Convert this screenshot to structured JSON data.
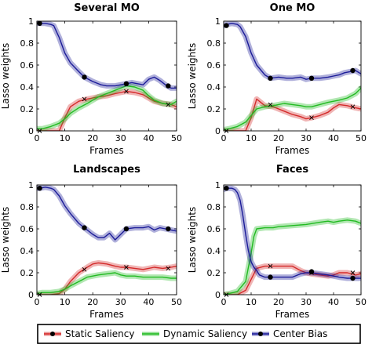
{
  "legend": [
    {
      "name": "Static Saliency",
      "color": "#d42a2a"
    },
    {
      "name": "Dynamic Saliency",
      "color": "#22bb22"
    },
    {
      "name": "Center Bias",
      "color": "#1c1c99"
    }
  ],
  "chart_data": [
    {
      "type": "line",
      "title": "Several MO",
      "xlabel": "Frames",
      "ylabel": "Lasso weights",
      "xlim": [
        0,
        50
      ],
      "ylim": [
        0,
        1
      ],
      "xticks": [
        0,
        10,
        20,
        30,
        40,
        50
      ],
      "yticks": [
        0,
        0.2,
        0.4,
        0.6,
        0.8,
        1
      ],
      "series": [
        {
          "name": "Static Saliency",
          "x": [
            0,
            2,
            5,
            8,
            10,
            12,
            15,
            18,
            20,
            22,
            25,
            28,
            30,
            32,
            35,
            38,
            40,
            42,
            45,
            48,
            50
          ],
          "y": [
            0,
            0,
            0,
            0,
            0.12,
            0.22,
            0.27,
            0.29,
            0.3,
            0.31,
            0.32,
            0.34,
            0.35,
            0.36,
            0.35,
            0.33,
            0.3,
            0.27,
            0.25,
            0.24,
            0.22
          ]
        },
        {
          "name": "Dynamic Saliency",
          "x": [
            0,
            2,
            5,
            8,
            10,
            12,
            15,
            18,
            20,
            22,
            25,
            28,
            30,
            32,
            35,
            38,
            40,
            42,
            45,
            48,
            50
          ],
          "y": [
            0.02,
            0.02,
            0.04,
            0.07,
            0.11,
            0.16,
            0.21,
            0.25,
            0.28,
            0.31,
            0.34,
            0.37,
            0.39,
            0.41,
            0.4,
            0.37,
            0.32,
            0.28,
            0.25,
            0.24,
            0.27
          ]
        },
        {
          "name": "Center Bias",
          "x": [
            0,
            1,
            3,
            5,
            6,
            8,
            10,
            12,
            15,
            17,
            20,
            23,
            25,
            28,
            30,
            32,
            34,
            36,
            38,
            40,
            42,
            44,
            46,
            48,
            50
          ],
          "y": [
            0.98,
            0.98,
            0.98,
            0.97,
            0.96,
            0.85,
            0.71,
            0.62,
            0.54,
            0.49,
            0.45,
            0.42,
            0.41,
            0.41,
            0.42,
            0.43,
            0.44,
            0.43,
            0.42,
            0.47,
            0.49,
            0.46,
            0.42,
            0.39,
            0.39
          ]
        }
      ],
      "markers": [
        {
          "series": "Center Bias",
          "x": [
            1,
            17,
            32,
            47
          ],
          "y": [
            0.98,
            0.49,
            0.43,
            0.41
          ]
        },
        {
          "series": "Static Saliency",
          "x": [
            1,
            17,
            32,
            47
          ],
          "y": [
            0,
            0.29,
            0.36,
            0.24
          ]
        }
      ]
    },
    {
      "type": "line",
      "title": "One MO",
      "xlabel": "Frames",
      "ylabel": "Lasso weights",
      "xlim": [
        0,
        50
      ],
      "ylim": [
        0,
        1
      ],
      "xticks": [
        0,
        10,
        20,
        30,
        40,
        50
      ],
      "yticks": [
        0,
        0.2,
        0.4,
        0.6,
        0.8,
        1
      ],
      "series": [
        {
          "name": "Static Saliency",
          "x": [
            0,
            2,
            5,
            8,
            10,
            12,
            15,
            18,
            20,
            22,
            25,
            28,
            30,
            32,
            35,
            38,
            40,
            42,
            45,
            48,
            50
          ],
          "y": [
            0,
            0,
            0,
            0,
            0.12,
            0.29,
            0.23,
            0.22,
            0.2,
            0.18,
            0.15,
            0.13,
            0.11,
            0.12,
            0.14,
            0.17,
            0.21,
            0.24,
            0.23,
            0.21,
            0.2
          ]
        },
        {
          "name": "Dynamic Saliency",
          "x": [
            0,
            2,
            5,
            8,
            10,
            12,
            15,
            18,
            20,
            22,
            25,
            28,
            30,
            32,
            35,
            38,
            40,
            42,
            45,
            48,
            50
          ],
          "y": [
            0.01,
            0.02,
            0.04,
            0.08,
            0.14,
            0.2,
            0.22,
            0.23,
            0.24,
            0.25,
            0.24,
            0.23,
            0.22,
            0.22,
            0.24,
            0.26,
            0.27,
            0.28,
            0.3,
            0.34,
            0.39
          ]
        },
        {
          "name": "Center Bias",
          "x": [
            0,
            1,
            3,
            5,
            6,
            8,
            10,
            12,
            15,
            17,
            20,
            23,
            25,
            28,
            30,
            32,
            35,
            38,
            40,
            42,
            44,
            46,
            48,
            50
          ],
          "y": [
            0.96,
            0.97,
            0.98,
            0.97,
            0.95,
            0.86,
            0.71,
            0.6,
            0.51,
            0.48,
            0.49,
            0.48,
            0.48,
            0.49,
            0.47,
            0.48,
            0.48,
            0.49,
            0.5,
            0.51,
            0.53,
            0.54,
            0.55,
            0.52
          ]
        }
      ],
      "markers": [
        {
          "series": "Center Bias",
          "x": [
            1,
            17,
            32,
            47
          ],
          "y": [
            0.96,
            0.48,
            0.48,
            0.55
          ]
        },
        {
          "series": "Static Saliency",
          "x": [
            1,
            17,
            32,
            47
          ],
          "y": [
            0,
            0.24,
            0.12,
            0.22
          ]
        }
      ]
    },
    {
      "type": "line",
      "title": "Landscapes",
      "xlabel": "Frames",
      "ylabel": "Lasso weights",
      "xlim": [
        0,
        50
      ],
      "ylim": [
        0,
        1
      ],
      "xticks": [
        0,
        10,
        20,
        30,
        40,
        50
      ],
      "yticks": [
        0,
        0.2,
        0.4,
        0.6,
        0.8,
        1
      ],
      "series": [
        {
          "name": "Static Saliency",
          "x": [
            0,
            2,
            5,
            8,
            10,
            12,
            15,
            18,
            20,
            22,
            25,
            28,
            30,
            32,
            35,
            38,
            40,
            42,
            45,
            48,
            50
          ],
          "y": [
            0,
            0,
            0,
            0.01,
            0.05,
            0.12,
            0.2,
            0.25,
            0.28,
            0.29,
            0.28,
            0.26,
            0.25,
            0.25,
            0.24,
            0.23,
            0.24,
            0.25,
            0.24,
            0.25,
            0.26
          ]
        },
        {
          "name": "Dynamic Saliency",
          "x": [
            0,
            2,
            5,
            8,
            10,
            12,
            15,
            18,
            20,
            22,
            25,
            28,
            30,
            32,
            35,
            38,
            40,
            42,
            45,
            48,
            50
          ],
          "y": [
            0.01,
            0.02,
            0.02,
            0.03,
            0.05,
            0.08,
            0.12,
            0.16,
            0.17,
            0.18,
            0.19,
            0.2,
            0.18,
            0.17,
            0.17,
            0.16,
            0.16,
            0.16,
            0.16,
            0.15,
            0.15
          ]
        },
        {
          "name": "Center Bias",
          "x": [
            0,
            1,
            3,
            5,
            6,
            8,
            10,
            12,
            15,
            17,
            20,
            22,
            24,
            26,
            28,
            30,
            32,
            35,
            38,
            40,
            42,
            44,
            46,
            48,
            50
          ],
          "y": [
            0.97,
            0.97,
            0.98,
            0.97,
            0.96,
            0.9,
            0.81,
            0.74,
            0.65,
            0.61,
            0.55,
            0.52,
            0.52,
            0.56,
            0.5,
            0.55,
            0.6,
            0.61,
            0.61,
            0.62,
            0.59,
            0.61,
            0.6,
            0.59,
            0.58
          ]
        }
      ],
      "markers": [
        {
          "series": "Center Bias",
          "x": [
            1,
            17,
            32,
            47
          ],
          "y": [
            0.97,
            0.61,
            0.6,
            0.6
          ]
        },
        {
          "series": "Static Saliency",
          "x": [
            1,
            17,
            32,
            47
          ],
          "y": [
            0,
            0.23,
            0.25,
            0.24
          ]
        }
      ]
    },
    {
      "type": "line",
      "title": "Faces",
      "xlabel": "Frames",
      "ylabel": "Lasso weights",
      "xlim": [
        0,
        50
      ],
      "ylim": [
        0,
        1
      ],
      "xticks": [
        0,
        10,
        20,
        30,
        40,
        50
      ],
      "yticks": [
        0,
        0.2,
        0.4,
        0.6,
        0.8,
        1
      ],
      "series": [
        {
          "name": "Static Saliency",
          "x": [
            0,
            2,
            5,
            8,
            10,
            12,
            15,
            18,
            20,
            22,
            25,
            28,
            30,
            32,
            35,
            38,
            40,
            42,
            45,
            48,
            50
          ],
          "y": [
            0,
            0,
            0,
            0.04,
            0.14,
            0.24,
            0.26,
            0.26,
            0.26,
            0.26,
            0.26,
            0.22,
            0.2,
            0.19,
            0.18,
            0.17,
            0.18,
            0.2,
            0.2,
            0.18,
            0.19
          ]
        },
        {
          "name": "Dynamic Saliency",
          "x": [
            0,
            2,
            5,
            8,
            9,
            10,
            11,
            12,
            15,
            18,
            20,
            25,
            30,
            35,
            38,
            40,
            42,
            45,
            48,
            50
          ],
          "y": [
            0,
            0.01,
            0.03,
            0.12,
            0.25,
            0.38,
            0.53,
            0.6,
            0.61,
            0.61,
            0.62,
            0.63,
            0.64,
            0.66,
            0.67,
            0.66,
            0.67,
            0.68,
            0.67,
            0.65
          ]
        },
        {
          "name": "Center Bias",
          "x": [
            0,
            1,
            3,
            4,
            5,
            6,
            7,
            8,
            9,
            10,
            11,
            12,
            13,
            15,
            18,
            20,
            25,
            28,
            30,
            32,
            35,
            38,
            40,
            42,
            45,
            48,
            50
          ],
          "y": [
            0.96,
            0.97,
            0.97,
            0.96,
            0.93,
            0.86,
            0.72,
            0.55,
            0.4,
            0.3,
            0.25,
            0.22,
            0.18,
            0.16,
            0.16,
            0.16,
            0.16,
            0.19,
            0.2,
            0.2,
            0.19,
            0.18,
            0.17,
            0.16,
            0.15,
            0.15,
            0.15
          ]
        }
      ],
      "markers": [
        {
          "series": "Center Bias",
          "x": [
            1,
            17,
            32,
            47
          ],
          "y": [
            0.97,
            0.16,
            0.21,
            0.15
          ]
        },
        {
          "series": "Static Saliency",
          "x": [
            1,
            17,
            32,
            47
          ],
          "y": [
            0,
            0.26,
            0.2,
            0.2
          ]
        }
      ]
    }
  ]
}
